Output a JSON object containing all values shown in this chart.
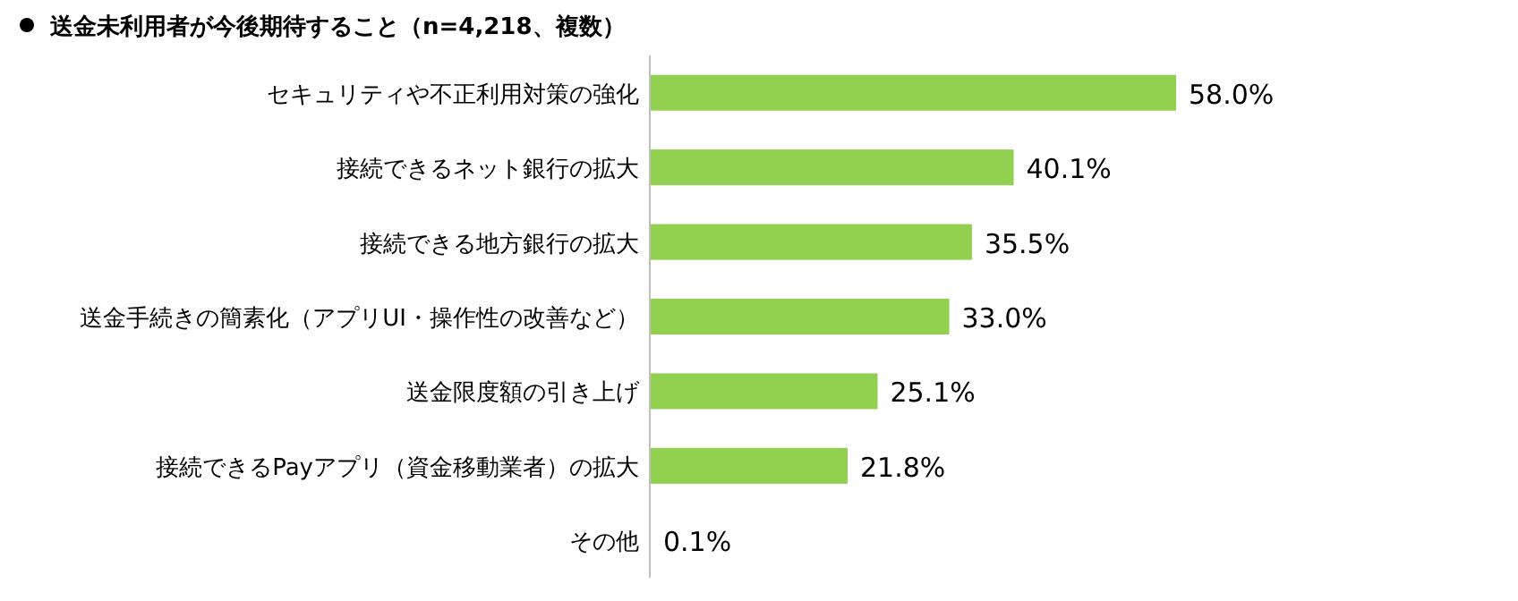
{
  "chart_data": {
    "type": "bar",
    "orientation": "horizontal",
    "title": "送金未利用者が今後期待すること（n=4,218、複数）",
    "categories": [
      "セキュリティや不正利用対策の強化",
      "接続できるネット銀行の拡大",
      "接続できる地方銀行の拡大",
      "送金手続きの簡素化（アプリUI・操作性の改善など）",
      "送金限度額の引き上げ",
      "接続できるPayアプリ（資金移動業者）の拡大",
      "その他"
    ],
    "values": [
      58.0,
      40.1,
      35.5,
      33.0,
      25.1,
      21.8,
      0.1
    ],
    "value_labels": [
      "58.0%",
      "40.1%",
      "35.5%",
      "33.0%",
      "25.1%",
      "21.8%",
      "0.1%"
    ],
    "color": "#92d050"
  }
}
